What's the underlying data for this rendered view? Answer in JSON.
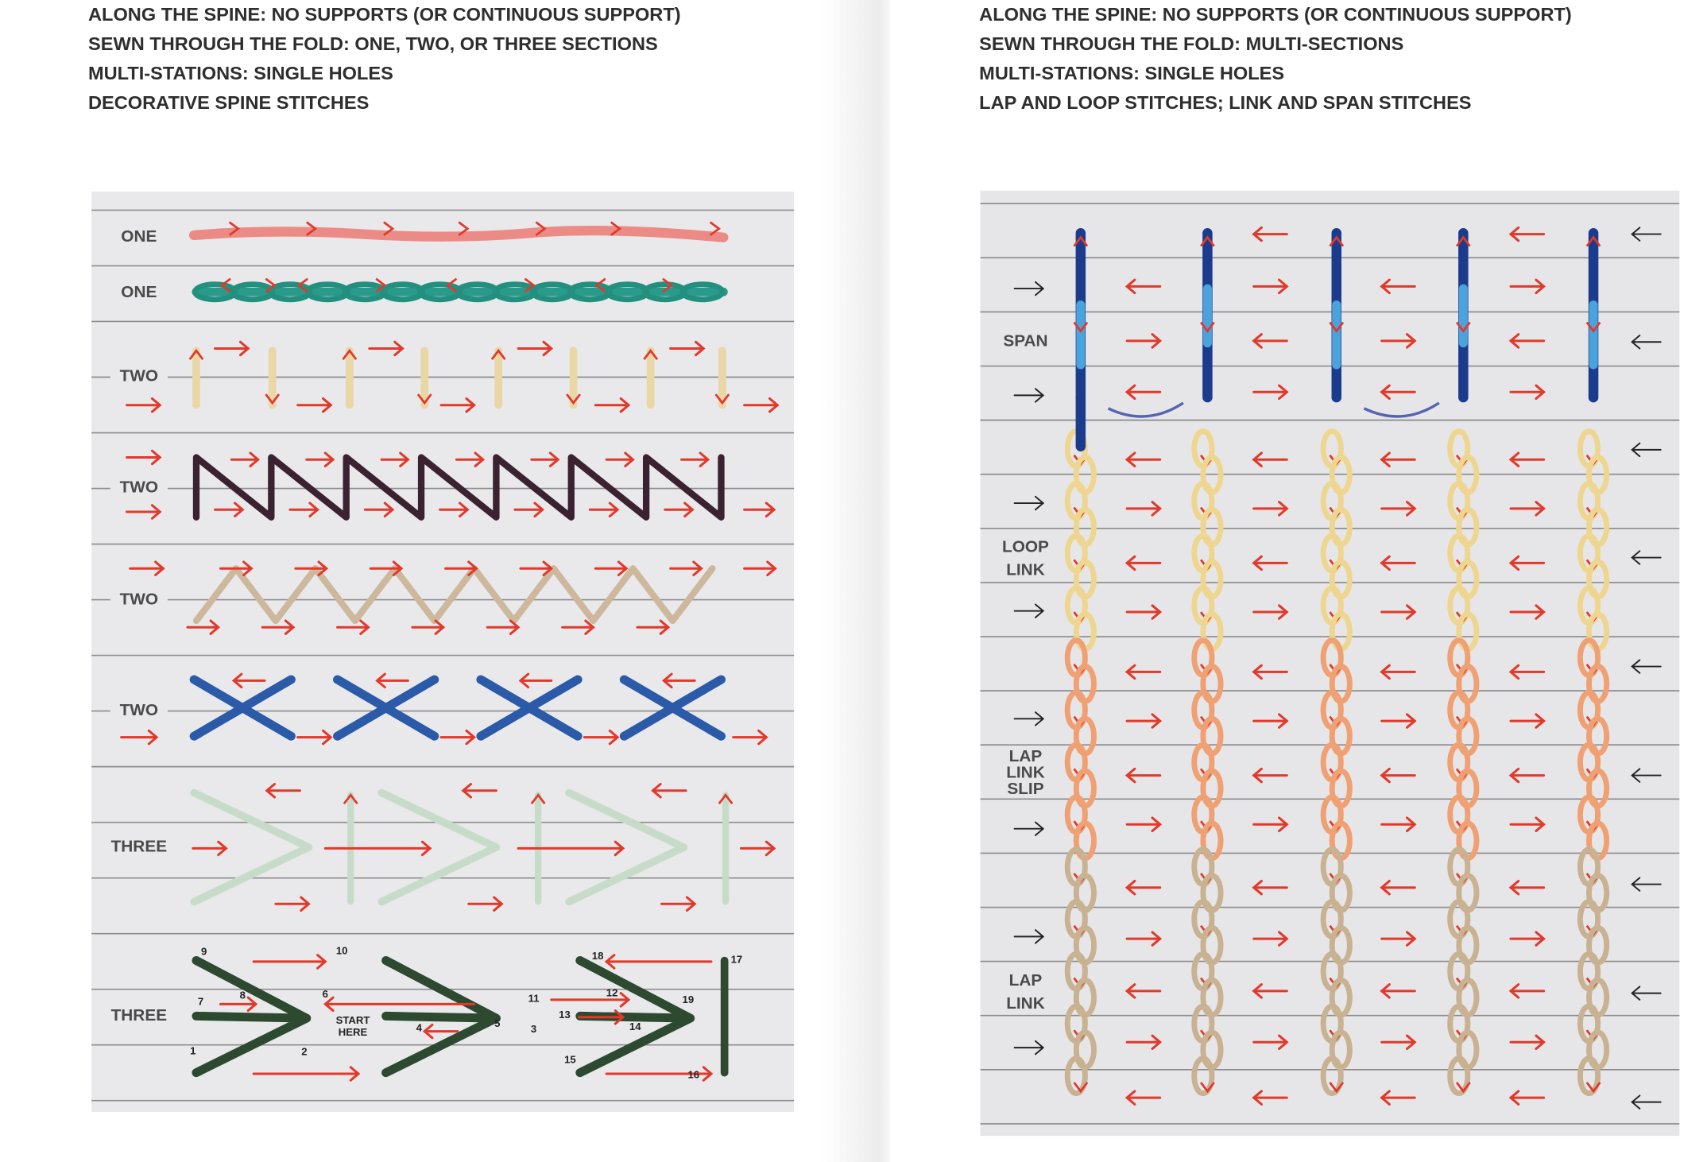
{
  "left_page": {
    "header": [
      "ALONG THE SPINE: NO SUPPORTS (OR CONTINUOUS SUPPORT)",
      "SEWN THROUGH THE FOLD: ONE, TWO, OR THREE SECTIONS",
      "MULTI-STATIONS: SINGLE HOLES",
      "DECORATIVE SPINE STITCHES"
    ],
    "row_labels": [
      "ONE",
      "ONE",
      "TWO",
      "TWO",
      "TWO",
      "TWO",
      "THREE",
      "THREE"
    ],
    "step_numbers": [
      1,
      2,
      3,
      4,
      5,
      6,
      7,
      8,
      9,
      10,
      11,
      12,
      13,
      14,
      15,
      16,
      17,
      18,
      19
    ],
    "start_label": [
      "START",
      "HERE"
    ]
  },
  "right_page": {
    "header": [
      "ALONG THE SPINE: NO SUPPORTS (OR CONTINUOUS SUPPORT)",
      "SEWN THROUGH THE FOLD: MULTI-SECTIONS",
      "MULTI-STATIONS: SINGLE HOLES",
      "LAP AND LOOP STITCHES; LINK AND SPAN STITCHES"
    ],
    "labels": [
      [
        "SPAN"
      ],
      [
        "LOOP",
        "LINK"
      ],
      [
        "LAP",
        "LINK",
        "SLIP"
      ],
      [
        "LAP",
        "LINK"
      ]
    ]
  }
}
